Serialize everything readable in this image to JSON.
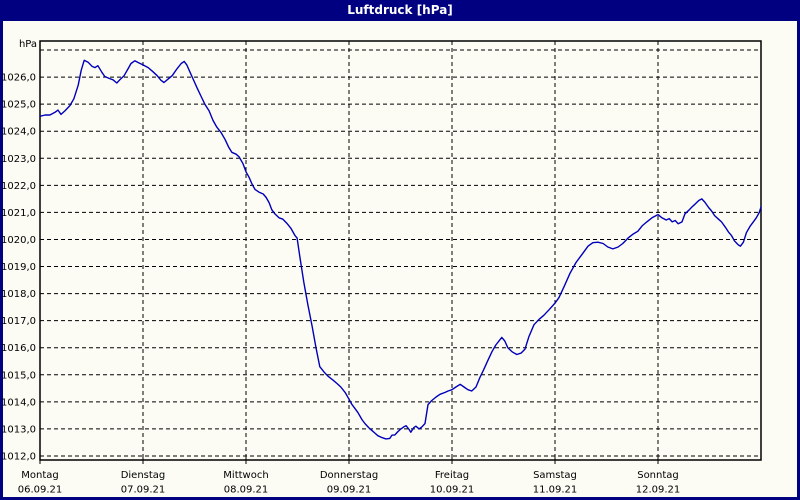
{
  "window": {
    "title": "Luftdruck [hPa]"
  },
  "colors": {
    "titlebar_bg": "#000080",
    "titlebar_text": "#ffffff",
    "window_border": "#000080",
    "window_bg": "#fcfcf4",
    "plot_border": "#000000",
    "grid": "#000000",
    "label_text": "#000000",
    "line": "#0000bb"
  },
  "chart_data": {
    "type": "line",
    "title": "Luftdruck [hPa]",
    "ylabel": "hPa",
    "xlabel": "",
    "grid": "dashed",
    "legend": "none",
    "y_axis": {
      "min": 1012,
      "max": 1027,
      "tick_step": 1,
      "unit": "hPa",
      "tick_labels": [
        "1012,0",
        "1013,0",
        "1014,0",
        "1015,0",
        "1016,0",
        "1017,0",
        "1018,0",
        "1019,0",
        "1020,0",
        "1021,0",
        "1022,0",
        "1023,0",
        "1024,0",
        "1025,0",
        "1026,0"
      ]
    },
    "x_axis": {
      "span_hours": 168,
      "days": [
        {
          "name": "Montag",
          "date": "06.09.21",
          "start_hour": 0
        },
        {
          "name": "Dienstag",
          "date": "07.09.21",
          "start_hour": 24
        },
        {
          "name": "Mittwoch",
          "date": "08.09.21",
          "start_hour": 48
        },
        {
          "name": "Donnerstag",
          "date": "09.09.21",
          "start_hour": 72
        },
        {
          "name": "Freitag",
          "date": "10.09.21",
          "start_hour": 96
        },
        {
          "name": "Samstag",
          "date": "11.09.21",
          "start_hour": 120
        },
        {
          "name": "Sonntag",
          "date": "12.09.21",
          "start_hour": 144
        }
      ]
    },
    "series": [
      {
        "name": "Luftdruck",
        "unit": "hPa",
        "color": "#0000bb",
        "points": [
          [
            0,
            1024.55
          ],
          [
            1.2,
            1024.6
          ],
          [
            2.3,
            1024.6
          ],
          [
            3.5,
            1024.7
          ],
          [
            4.2,
            1024.78
          ],
          [
            4.9,
            1024.62
          ],
          [
            5.8,
            1024.75
          ],
          [
            7,
            1024.95
          ],
          [
            7.9,
            1025.2
          ],
          [
            8.9,
            1025.7
          ],
          [
            9.6,
            1026.25
          ],
          [
            10.3,
            1026.62
          ],
          [
            11.2,
            1026.55
          ],
          [
            12.1,
            1026.4
          ],
          [
            12.8,
            1026.35
          ],
          [
            13.5,
            1026.42
          ],
          [
            14.4,
            1026.18
          ],
          [
            15.1,
            1026.02
          ],
          [
            16.1,
            1025.95
          ],
          [
            17,
            1025.9
          ],
          [
            17.9,
            1025.78
          ],
          [
            18.6,
            1025.9
          ],
          [
            19.6,
            1026.05
          ],
          [
            20.5,
            1026.3
          ],
          [
            21.2,
            1026.5
          ],
          [
            22.1,
            1026.6
          ],
          [
            23.1,
            1026.52
          ],
          [
            24,
            1026.45
          ],
          [
            25.2,
            1026.35
          ],
          [
            26.3,
            1026.2
          ],
          [
            27.3,
            1026.05
          ],
          [
            28.2,
            1025.88
          ],
          [
            28.9,
            1025.8
          ],
          [
            29.8,
            1025.92
          ],
          [
            30.8,
            1026.05
          ],
          [
            31.9,
            1026.3
          ],
          [
            32.9,
            1026.5
          ],
          [
            33.6,
            1026.58
          ],
          [
            34.2,
            1026.45
          ],
          [
            34.9,
            1026.2
          ],
          [
            35.6,
            1025.95
          ],
          [
            36.6,
            1025.6
          ],
          [
            37.5,
            1025.3
          ],
          [
            38.4,
            1025
          ],
          [
            39.4,
            1024.75
          ],
          [
            40.3,
            1024.4
          ],
          [
            41.2,
            1024.15
          ],
          [
            42.2,
            1023.95
          ],
          [
            43.1,
            1023.7
          ],
          [
            44,
            1023.4
          ],
          [
            44.7,
            1023.22
          ],
          [
            45.7,
            1023.15
          ],
          [
            46.4,
            1023.05
          ],
          [
            47.3,
            1022.8
          ],
          [
            48,
            1022.5
          ],
          [
            48.7,
            1022.3
          ],
          [
            49.4,
            1022.05
          ],
          [
            50.1,
            1021.85
          ],
          [
            51,
            1021.75
          ],
          [
            52,
            1021.68
          ],
          [
            52.7,
            1021.55
          ],
          [
            53.4,
            1021.35
          ],
          [
            54,
            1021.1
          ],
          [
            54.7,
            1020.95
          ],
          [
            55.7,
            1020.8
          ],
          [
            56.6,
            1020.75
          ],
          [
            57.5,
            1020.6
          ],
          [
            58.5,
            1020.4
          ],
          [
            59.4,
            1020.15
          ],
          [
            59.9,
            1020.05
          ],
          [
            60.6,
            1019.3
          ],
          [
            61.5,
            1018.4
          ],
          [
            62.4,
            1017.6
          ],
          [
            63.4,
            1016.8
          ],
          [
            64.3,
            1016
          ],
          [
            65.2,
            1015.3
          ],
          [
            66.2,
            1015.1
          ],
          [
            67.1,
            1014.95
          ],
          [
            68.3,
            1014.8
          ],
          [
            69.2,
            1014.68
          ],
          [
            70.1,
            1014.55
          ],
          [
            71.1,
            1014.35
          ],
          [
            72,
            1014.1
          ],
          [
            72.7,
            1013.9
          ],
          [
            73.4,
            1013.75
          ],
          [
            74.1,
            1013.6
          ],
          [
            75,
            1013.35
          ],
          [
            75.7,
            1013.2
          ],
          [
            76.6,
            1013.05
          ],
          [
            77.3,
            1012.95
          ],
          [
            78,
            1012.85
          ],
          [
            78.7,
            1012.75
          ],
          [
            79.7,
            1012.68
          ],
          [
            80.6,
            1012.63
          ],
          [
            81.5,
            1012.65
          ],
          [
            82,
            1012.77
          ],
          [
            82.7,
            1012.78
          ],
          [
            83.4,
            1012.9
          ],
          [
            84.1,
            1013
          ],
          [
            84.8,
            1013.08
          ],
          [
            85.3,
            1013.12
          ],
          [
            86,
            1012.98
          ],
          [
            86.4,
            1012.88
          ],
          [
            87.1,
            1013.05
          ],
          [
            87.6,
            1013.1
          ],
          [
            88.3,
            1013
          ],
          [
            89,
            1013.08
          ],
          [
            89.7,
            1013.2
          ],
          [
            90.4,
            1013.9
          ],
          [
            91.3,
            1014.05
          ],
          [
            92.3,
            1014.18
          ],
          [
            93.2,
            1014.28
          ],
          [
            94.4,
            1014.35
          ],
          [
            95.1,
            1014.4
          ],
          [
            96,
            1014.45
          ],
          [
            96.9,
            1014.55
          ],
          [
            97.9,
            1014.65
          ],
          [
            98.8,
            1014.55
          ],
          [
            99.7,
            1014.45
          ],
          [
            100.6,
            1014.4
          ],
          [
            101.6,
            1014.55
          ],
          [
            102.5,
            1014.9
          ],
          [
            103.4,
            1015.2
          ],
          [
            104.4,
            1015.55
          ],
          [
            105.3,
            1015.85
          ],
          [
            106.2,
            1016.1
          ],
          [
            107.2,
            1016.3
          ],
          [
            107.6,
            1016.38
          ],
          [
            108.3,
            1016.25
          ],
          [
            109,
            1016
          ],
          [
            110,
            1015.85
          ],
          [
            111.1,
            1015.75
          ],
          [
            112.1,
            1015.8
          ],
          [
            113,
            1015.95
          ],
          [
            113.9,
            1016.4
          ],
          [
            115.1,
            1016.85
          ],
          [
            116.3,
            1017.05
          ],
          [
            117.4,
            1017.2
          ],
          [
            118.6,
            1017.4
          ],
          [
            120,
            1017.65
          ],
          [
            120.9,
            1017.85
          ],
          [
            122.1,
            1018.25
          ],
          [
            123.5,
            1018.75
          ],
          [
            124.9,
            1019.15
          ],
          [
            126.3,
            1019.45
          ],
          [
            127.7,
            1019.75
          ],
          [
            128.8,
            1019.88
          ],
          [
            130,
            1019.9
          ],
          [
            131.2,
            1019.85
          ],
          [
            132.3,
            1019.72
          ],
          [
            133.5,
            1019.65
          ],
          [
            134.7,
            1019.72
          ],
          [
            135.8,
            1019.85
          ],
          [
            137,
            1020.05
          ],
          [
            138.2,
            1020.2
          ],
          [
            139.3,
            1020.3
          ],
          [
            140.3,
            1020.5
          ],
          [
            141.4,
            1020.65
          ],
          [
            142.6,
            1020.8
          ],
          [
            144,
            1020.92
          ],
          [
            144.9,
            1020.8
          ],
          [
            145.9,
            1020.72
          ],
          [
            146.6,
            1020.77
          ],
          [
            147.3,
            1020.65
          ],
          [
            148,
            1020.7
          ],
          [
            148.7,
            1020.58
          ],
          [
            149.6,
            1020.65
          ],
          [
            150.3,
            1020.95
          ],
          [
            151.2,
            1021.08
          ],
          [
            151.9,
            1021.2
          ],
          [
            152.6,
            1021.3
          ],
          [
            153.5,
            1021.44
          ],
          [
            154.2,
            1021.5
          ],
          [
            154.9,
            1021.38
          ],
          [
            155.8,
            1021.18
          ],
          [
            156.5,
            1021.05
          ],
          [
            157.2,
            1020.88
          ],
          [
            158.1,
            1020.75
          ],
          [
            158.8,
            1020.65
          ],
          [
            159.7,
            1020.45
          ],
          [
            160.4,
            1020.28
          ],
          [
            161.1,
            1020.15
          ],
          [
            161.8,
            1019.95
          ],
          [
            162.7,
            1019.8
          ],
          [
            163.2,
            1019.75
          ],
          [
            163.9,
            1019.9
          ],
          [
            164.6,
            1020.25
          ],
          [
            165.5,
            1020.5
          ],
          [
            166.2,
            1020.65
          ],
          [
            166.9,
            1020.8
          ],
          [
            167.6,
            1021
          ],
          [
            168,
            1021.2
          ]
        ]
      }
    ]
  }
}
